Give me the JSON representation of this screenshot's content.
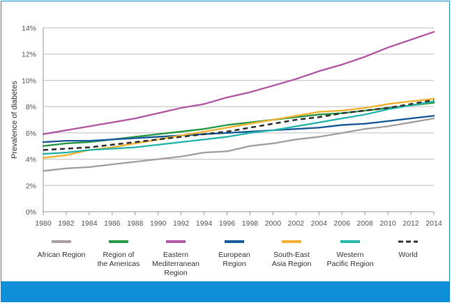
{
  "chart_data": {
    "type": "line",
    "title": "",
    "xlabel": "",
    "ylabel": "Prevalence of diabetes",
    "x": [
      1980,
      1982,
      1984,
      1986,
      1988,
      1990,
      1992,
      1994,
      1996,
      1998,
      2000,
      2002,
      2004,
      2006,
      2008,
      2010,
      2012,
      2014
    ],
    "xticks": [
      "1980",
      "1982",
      "1984",
      "1986",
      "1988",
      "1990",
      "1992",
      "1994",
      "1996",
      "1998",
      "2000",
      "2002",
      "2004",
      "2006",
      "2008",
      "2010",
      "2012",
      "2014"
    ],
    "yticks": [
      "0%",
      "2%",
      "4%",
      "6%",
      "8%",
      "10%",
      "12%",
      "14%"
    ],
    "ylim": [
      0,
      14
    ],
    "grid": "horizontal",
    "legend_position": "bottom",
    "series": [
      {
        "name": "African Region",
        "color": "#a7a1a0",
        "dashed": false,
        "values": [
          3.1,
          3.3,
          3.4,
          3.6,
          3.8,
          4.0,
          4.2,
          4.5,
          4.6,
          5.0,
          5.2,
          5.5,
          5.7,
          6.0,
          6.3,
          6.5,
          6.8,
          7.1
        ]
      },
      {
        "name": "Region of the Americas",
        "legend_lines": [
          "Region of",
          "the Americas"
        ],
        "color": "#2a9a48",
        "dashed": false,
        "values": [
          5.0,
          5.2,
          5.3,
          5.5,
          5.7,
          5.9,
          6.1,
          6.3,
          6.6,
          6.8,
          7.0,
          7.2,
          7.4,
          7.5,
          7.7,
          7.9,
          8.1,
          8.3
        ]
      },
      {
        "name": "Eastern Mediterranean Region",
        "legend_lines": [
          "Eastern",
          "Mediterranean",
          "Region"
        ],
        "color": "#b55aa6",
        "dashed": false,
        "values": [
          5.9,
          6.2,
          6.5,
          6.8,
          7.1,
          7.5,
          7.9,
          8.2,
          8.7,
          9.1,
          9.6,
          10.1,
          10.7,
          11.2,
          11.8,
          12.5,
          13.1,
          13.7
        ]
      },
      {
        "name": "European Region",
        "legend_lines": [
          "European",
          "Region"
        ],
        "color": "#1c5d9c",
        "dashed": false,
        "values": [
          5.3,
          5.4,
          5.4,
          5.5,
          5.6,
          5.7,
          5.8,
          5.9,
          6.0,
          6.1,
          6.2,
          6.3,
          6.4,
          6.6,
          6.7,
          6.9,
          7.1,
          7.3
        ]
      },
      {
        "name": "South-East Asia Region",
        "legend_lines": [
          "South-East",
          "Asia Region"
        ],
        "color": "#f2b233",
        "dashed": false,
        "values": [
          4.1,
          4.3,
          4.7,
          4.9,
          5.2,
          5.5,
          5.8,
          6.1,
          6.4,
          6.7,
          7.0,
          7.3,
          7.6,
          7.7,
          7.9,
          8.2,
          8.4,
          8.6
        ]
      },
      {
        "name": "Western Pacific Region",
        "legend_lines": [
          "Western",
          "Pacific Region"
        ],
        "color": "#2bb7ad",
        "dashed": false,
        "values": [
          4.4,
          4.5,
          4.7,
          4.8,
          4.9,
          5.1,
          5.3,
          5.5,
          5.7,
          6.0,
          6.2,
          6.5,
          6.8,
          7.1,
          7.4,
          7.8,
          8.1,
          8.4
        ]
      },
      {
        "name": "World",
        "color": "#333333",
        "dashed": true,
        "values": [
          4.7,
          4.8,
          4.9,
          5.1,
          5.3,
          5.5,
          5.7,
          5.9,
          6.1,
          6.4,
          6.7,
          7.0,
          7.2,
          7.5,
          7.7,
          7.9,
          8.2,
          8.5
        ]
      }
    ]
  }
}
